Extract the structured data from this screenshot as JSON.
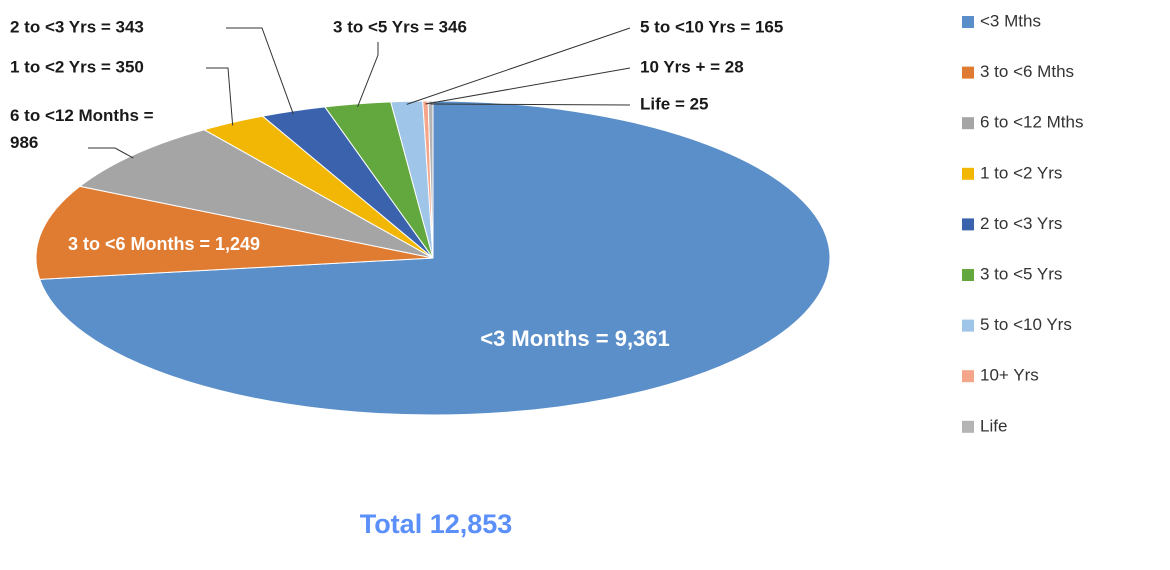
{
  "chart_data": {
    "type": "pie",
    "categories": [
      "<3 Mths",
      "3 to <6 Mths",
      "6 to <12 Mths",
      "1  to <2 Yrs",
      "2 to <3 Yrs",
      "3 to <5 Yrs",
      "5 to <10 Yrs",
      "10+ Yrs",
      "Life"
    ],
    "values": [
      9361,
      1249,
      986,
      350,
      343,
      346,
      165,
      28,
      25
    ],
    "value_labels": [
      "<3  Months = 9,361",
      "3 to <6 Months = 1,249",
      "6 to <12 Months = 986",
      "1 to <2 Yrs = 350",
      "2 to <3 Yrs = 343",
      "3 to <5 Yrs = 346",
      "5 to <10 Yrs = 165",
      "10 Yrs + = 28",
      "Life = 25"
    ],
    "colors": [
      "#5b8fc9",
      "#e07b32",
      "#a5a5a5",
      "#f2b705",
      "#3b62ad",
      "#62a83f",
      "#9fc5e8",
      "#f4a58a",
      "#b4b4b4"
    ],
    "total_label": "Total 12,853",
    "legend": "right"
  }
}
